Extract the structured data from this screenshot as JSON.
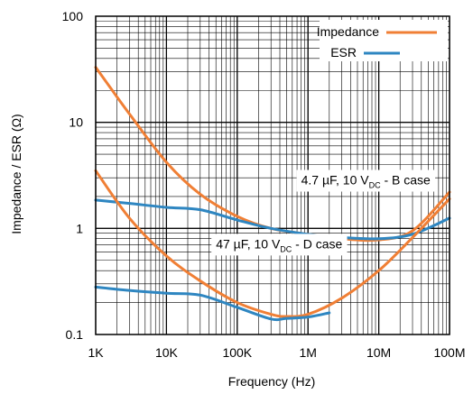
{
  "chart_data": {
    "type": "line",
    "xlabel": "Frequency (Hz)",
    "ylabel": "Impedance / ESR (Ω)",
    "xscale": "log",
    "yscale": "log",
    "xlim": [
      1000,
      100000000
    ],
    "ylim": [
      0.1,
      100
    ],
    "grid": true,
    "x_ticks": [
      {
        "value": 1000,
        "label": "1K"
      },
      {
        "value": 10000,
        "label": "10K"
      },
      {
        "value": 100000,
        "label": "100K"
      },
      {
        "value": 1000000,
        "label": "1M"
      },
      {
        "value": 10000000,
        "label": "10M"
      },
      {
        "value": 100000000,
        "label": "100M"
      }
    ],
    "y_ticks": [
      {
        "value": 0.1,
        "label": "0.1"
      },
      {
        "value": 1,
        "label": "1"
      },
      {
        "value": 10,
        "label": "10"
      },
      {
        "value": 100,
        "label": "100"
      }
    ],
    "legend": {
      "placement": "top-right",
      "entries": [
        {
          "name": "Impedance",
          "color": "#F07F35"
        },
        {
          "name": "ESR",
          "color": "#2E86C1"
        }
      ]
    },
    "series": [
      {
        "name": "Impedance",
        "color": "#F07F35",
        "x": [
          1000,
          3000,
          10000,
          30000,
          100000,
          300000,
          1000000,
          3000000,
          10000000,
          30000000,
          100000000
        ],
        "y": [
          33,
          12,
          4.2,
          2.1,
          1.3,
          1.0,
          0.88,
          0.8,
          0.78,
          0.95,
          2.2
        ]
      },
      {
        "name": "ESR",
        "color": "#2E86C1",
        "x": [
          1000,
          3000,
          10000,
          30000,
          100000,
          300000,
          1000000,
          3000000,
          10000000,
          30000000,
          100000000
        ],
        "y": [
          1.85,
          1.72,
          1.58,
          1.5,
          1.2,
          1.0,
          0.88,
          0.82,
          0.8,
          0.88,
          1.25
        ]
      },
      {
        "name": "Impedance",
        "color": "#F07F35",
        "x": [
          1000,
          3000,
          10000,
          30000,
          100000,
          300000,
          500000,
          1000000,
          3000000,
          10000000,
          30000000,
          100000000
        ],
        "y": [
          3.5,
          1.25,
          0.55,
          0.32,
          0.2,
          0.155,
          0.148,
          0.155,
          0.22,
          0.4,
          0.82,
          1.9
        ]
      },
      {
        "name": "ESR",
        "color": "#2E86C1",
        "x": [
          1000,
          3000,
          10000,
          30000,
          100000,
          300000,
          500000,
          1000000,
          2000000
        ],
        "y": [
          0.28,
          0.26,
          0.245,
          0.235,
          0.18,
          0.14,
          0.142,
          0.146,
          0.16
        ]
      }
    ],
    "annotations": [
      {
        "text_main": "4.7 µF, 10 V",
        "text_sub": "DC",
        "text_tail": " - B case",
        "x": 800000,
        "y": 2.6
      },
      {
        "text_main": "47 µF, 10 V",
        "text_sub": "DC",
        "text_tail": " - D case",
        "x": 50000,
        "y": 0.65
      }
    ]
  }
}
